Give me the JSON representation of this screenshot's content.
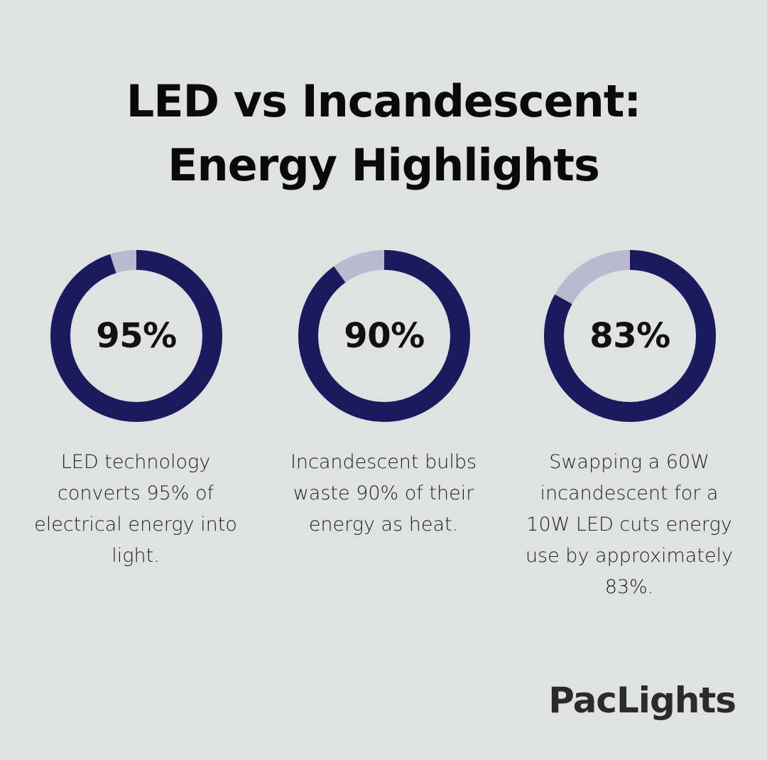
{
  "title": {
    "line1": "LED vs Incandescent:",
    "line2": "Energy Highlights"
  },
  "colors": {
    "background": "#e0e1e1",
    "ring_fill": "#1a1a5e",
    "ring_track": "#b9b9d0"
  },
  "chart_data": [
    {
      "type": "pie",
      "value": 95,
      "label": "95%",
      "description": "LED technology converts 95% of electrical energy into light."
    },
    {
      "type": "pie",
      "value": 90,
      "label": "90%",
      "description": "Incandescent bulbs waste 90% of their energy as heat."
    },
    {
      "type": "pie",
      "value": 83,
      "label": "83%",
      "description": "Swapping a 60W incandescent for a 10W LED cuts energy use by approximately 83%."
    }
  ],
  "logo": "PacLights"
}
